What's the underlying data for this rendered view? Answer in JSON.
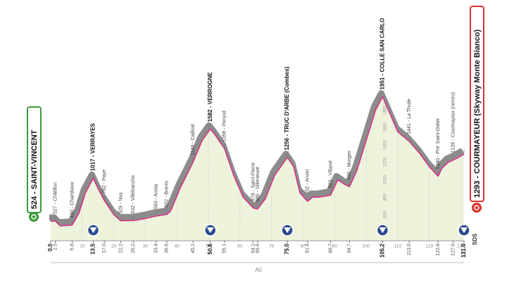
{
  "chart_data": {
    "type": "profile",
    "start_label": "524 - SAINT-VINCENT",
    "finish_label": "1293 - COURMAYEUR (Skyway Monte Bianco)",
    "segment_label": "A0",
    "logo_text": "SDS",
    "xlim": [
      0,
      131
    ],
    "ylim": [
      300,
      2100
    ],
    "xticks": [
      10,
      20,
      30,
      40,
      50,
      60,
      70,
      80,
      90,
      100,
      110,
      120,
      130
    ],
    "yticks": [
      600,
      800,
      1000,
      1200,
      1400,
      1600,
      1800
    ],
    "line_color": "#d6338a",
    "fill_color": "#eef3dc",
    "band_color": "#8c8c8c",
    "series": [
      {
        "name": "profile",
        "x": [
          0,
          1.5,
          3,
          6.8,
          9,
          11,
          13.5,
          15,
          17,
          20,
          22.2,
          26.2,
          30,
          33.4,
          36.8,
          38,
          41,
          45.1,
          48,
          50.6,
          52,
          55.1,
          58,
          61,
          64.2,
          65.6,
          68,
          71,
          75,
          77,
          79,
          81.4,
          83,
          85,
          88.7,
          91,
          93,
          94.7,
          97,
          100,
          103,
          105.2,
          107,
          110,
          113.6,
          117,
          120,
          122.8,
          124,
          126,
          127.6,
          129,
          131
        ],
        "values": [
          524,
          527,
          470,
          480,
          620,
          850,
          1017,
          900,
          762,
          600,
          529,
          532,
          555,
          583,
          602,
          640,
          900,
          1199,
          1450,
          1582,
          1520,
          1356,
          1050,
          800,
          676,
          665,
          780,
          1050,
          1256,
          1150,
          850,
          752,
          800,
          800,
          823,
          1000,
          950,
          920,
          1100,
          1450,
          1800,
          1951,
          1800,
          1550,
          1441,
          1300,
          1150,
          1040,
          1130,
          1200,
          1226,
          1250,
          1293
        ]
      },
      {
        "name": "waypoints",
        "x": [
          0,
          1.5,
          6.8,
          13.5,
          17.0,
          22.2,
          26.2,
          33.4,
          36.8,
          45.1,
          50.6,
          55.1,
          64.2,
          65.6,
          75.0,
          81.4,
          88.7,
          94.7,
          105.2,
          113.6,
          122.8,
          127.6,
          131.0
        ],
        "x_labels": [
          "0.0",
          "1.5",
          "6.8",
          "13.5",
          "17.0",
          "22.2",
          "26.2",
          "33.4",
          "36.8",
          "45.1",
          "50.6",
          "55.1",
          "64.2",
          "65.6",
          "75.0",
          "81.4",
          "88.7",
          "94.7",
          "105.2",
          "113.6",
          "122.8",
          "127.6",
          "131.0"
        ],
        "values": [
          524,
          527,
          480,
          1017,
          762,
          529,
          532,
          583,
          602,
          1199,
          1582,
          1356,
          676,
          665,
          1256,
          752,
          823,
          920,
          1951,
          1441,
          1040,
          1226,
          1293
        ],
        "value_labels": [
          null,
          "527 - Châtillon",
          "480 - Chambave",
          "1017 - VERRAYES",
          "762 - Paye",
          "529 - Nus",
          "532 - Villefranche",
          "583 - Aosta",
          "602 - Brenlo",
          "1199 - Cailliod",
          "1582 - VERROGNE",
          "1356 - Persod",
          "676 - Saint-Pierre",
          "665 - Villeneuve",
          "1256 - TRUC D'ARBE (Combes)",
          "752 - Arvier",
          "823 - Villaret",
          "920 - Morgex",
          "1951 - COLLE SAN CARLO",
          "1441 - La Thuile",
          "1040 - Pre' Saint-Didier",
          "1226 - Courmayeur (centro)",
          null
        ],
        "bold": [
          true,
          false,
          false,
          true,
          false,
          false,
          false,
          false,
          false,
          false,
          true,
          false,
          false,
          false,
          true,
          false,
          false,
          false,
          true,
          false,
          false,
          false,
          true
        ]
      }
    ]
  }
}
